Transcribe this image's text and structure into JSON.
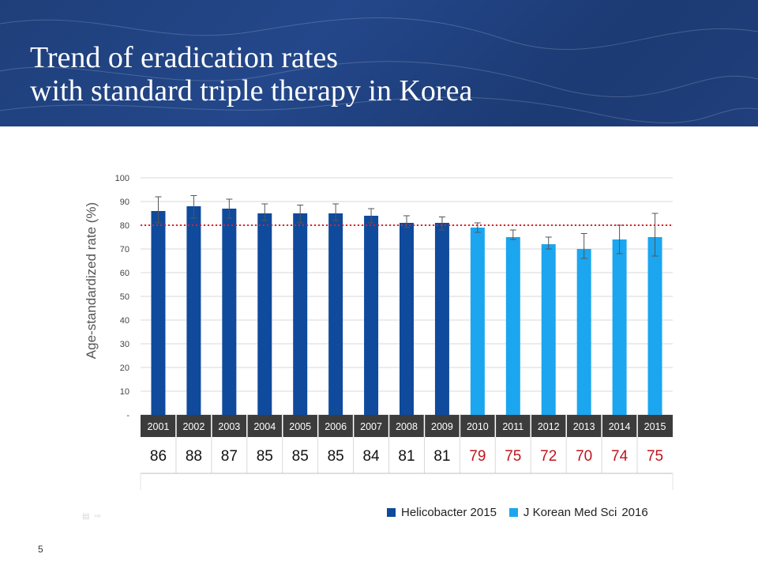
{
  "slide": {
    "title_line1": "Trend of eradication rates",
    "title_line2": "with standard triple therapy in Korea",
    "page_number": "5",
    "nav": {
      "menu_icon": "menu-icon",
      "next_icon": "arrow-right-icon"
    }
  },
  "colors": {
    "banner": "#21427f",
    "series_dark": "#0f4a9c",
    "series_light": "#1ba6ef",
    "threshold_line": "#e0202a",
    "table_header": "#3c3c3c",
    "value_dark": "#111111",
    "value_red": "#c0141c"
  },
  "legend": {
    "item1": "Helicobacter 2015",
    "item2": "J Korean Med Sci",
    "item2_year": "2016"
  },
  "chart_data": {
    "type": "bar",
    "ylabel": "Age-standardized rate (%)",
    "ylim": [
      0,
      100
    ],
    "yticks": [
      0,
      10,
      20,
      30,
      40,
      50,
      60,
      70,
      80,
      90,
      100
    ],
    "ytick_labels": [
      "-",
      "10",
      "20",
      "30",
      "40",
      "50",
      "60",
      "70",
      "80",
      "90",
      "100"
    ],
    "grid": true,
    "reference_line": 80,
    "categories": [
      "2001",
      "2002",
      "2003",
      "2004",
      "2005",
      "2006",
      "2007",
      "2008",
      "2009",
      "2010",
      "2011",
      "2012",
      "2013",
      "2014",
      "2015"
    ],
    "values": [
      86,
      88,
      87,
      85,
      85,
      85,
      84,
      81,
      81,
      79,
      75,
      72,
      70,
      74,
      75
    ],
    "value_labels": [
      "86",
      "88",
      "87",
      "85",
      "85",
      "85",
      "84",
      "81",
      "81",
      "79",
      "75",
      "72",
      "70",
      "74",
      "75"
    ],
    "error_low": [
      81,
      83,
      83,
      82,
      81,
      82,
      81,
      79,
      78,
      77,
      74,
      70,
      66,
      68,
      67
    ],
    "error_high": [
      92,
      92.5,
      91,
      89,
      88.5,
      89,
      87,
      84,
      83.5,
      81,
      78,
      75,
      76.5,
      80,
      85
    ],
    "series_source": [
      "Helicobacter 2015",
      "Helicobacter 2015",
      "Helicobacter 2015",
      "Helicobacter 2015",
      "Helicobacter 2015",
      "Helicobacter 2015",
      "Helicobacter 2015",
      "Helicobacter 2015",
      "Helicobacter 2015",
      "J Korean Med Sci",
      "J Korean Med Sci",
      "J Korean Med Sci",
      "J Korean Med Sci",
      "J Korean Med Sci",
      "J Korean Med Sci"
    ]
  }
}
